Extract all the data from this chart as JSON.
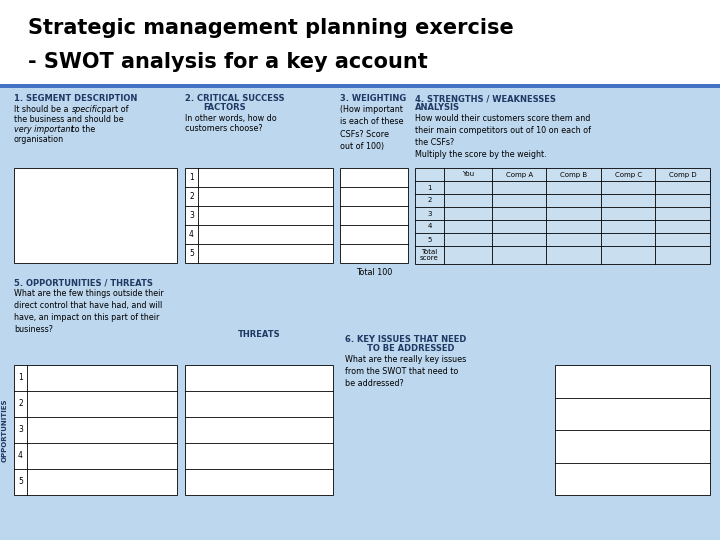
{
  "title_line1": "Strategic management planning exercise",
  "title_line2": "- SWOT analysis for a key account",
  "bg_color": "#bdd7ee",
  "header_bg": "#ffffff",
  "title_color": "#000000",
  "blue_color": "#1f3864",
  "blue_header_color": "#1f3864",
  "separator_color": "#4472c4",
  "section1_header": "1. SEGMENT DESCRIPTION",
  "section1_body1": "It should be a ",
  "section1_body1b": "specific",
  "section1_body1c": " part of",
  "section1_body2": "the business and should be",
  "section1_body3": "very important",
  "section1_body3b": " to the",
  "section1_body4": "organisation",
  "section2_header1": "2. CRITICAL SUCCESS",
  "section2_header2": "FACTORS",
  "section2_body1": "In other words, how do",
  "section2_body2": "customers choose?",
  "section3_header": "3. WEIGHTING",
  "section3_body": "(How important\nis each of these\nCSFs? Score\nout of 100)",
  "section4_header1": "4. STRENGTHS / WEAKNESSES",
  "section4_header2": "ANALYSIS",
  "section4_body": "How would their customers score them and\ntheir main competitors out of 10 on each of\nthe CSFs?\nMultiply the score by the weight.",
  "section5_header": "5. OPPORTUNITIES / THREATS",
  "section5_body": "What are the few things outside their\ndirect control that have had, and will\nhave, an impact on this part of their\nbusiness?",
  "section6_header1": "6. KEY ISSUES THAT NEED",
  "section6_header2": "TO BE ADDRESSED",
  "section6_body": "What are the really key issues\nfrom the SWOT that need to\nbe addressed?",
  "threats_label": "THREATS",
  "opportunities_label": "OPPORTUNITIES",
  "col_headers_4": [
    "You",
    "Comp A",
    "Comp B",
    "Comp C",
    "Comp D"
  ],
  "row_numbers": [
    "1",
    "2",
    "3",
    "4",
    "5"
  ],
  "total_label": "Total\nscore",
  "total_100": "Total 100"
}
